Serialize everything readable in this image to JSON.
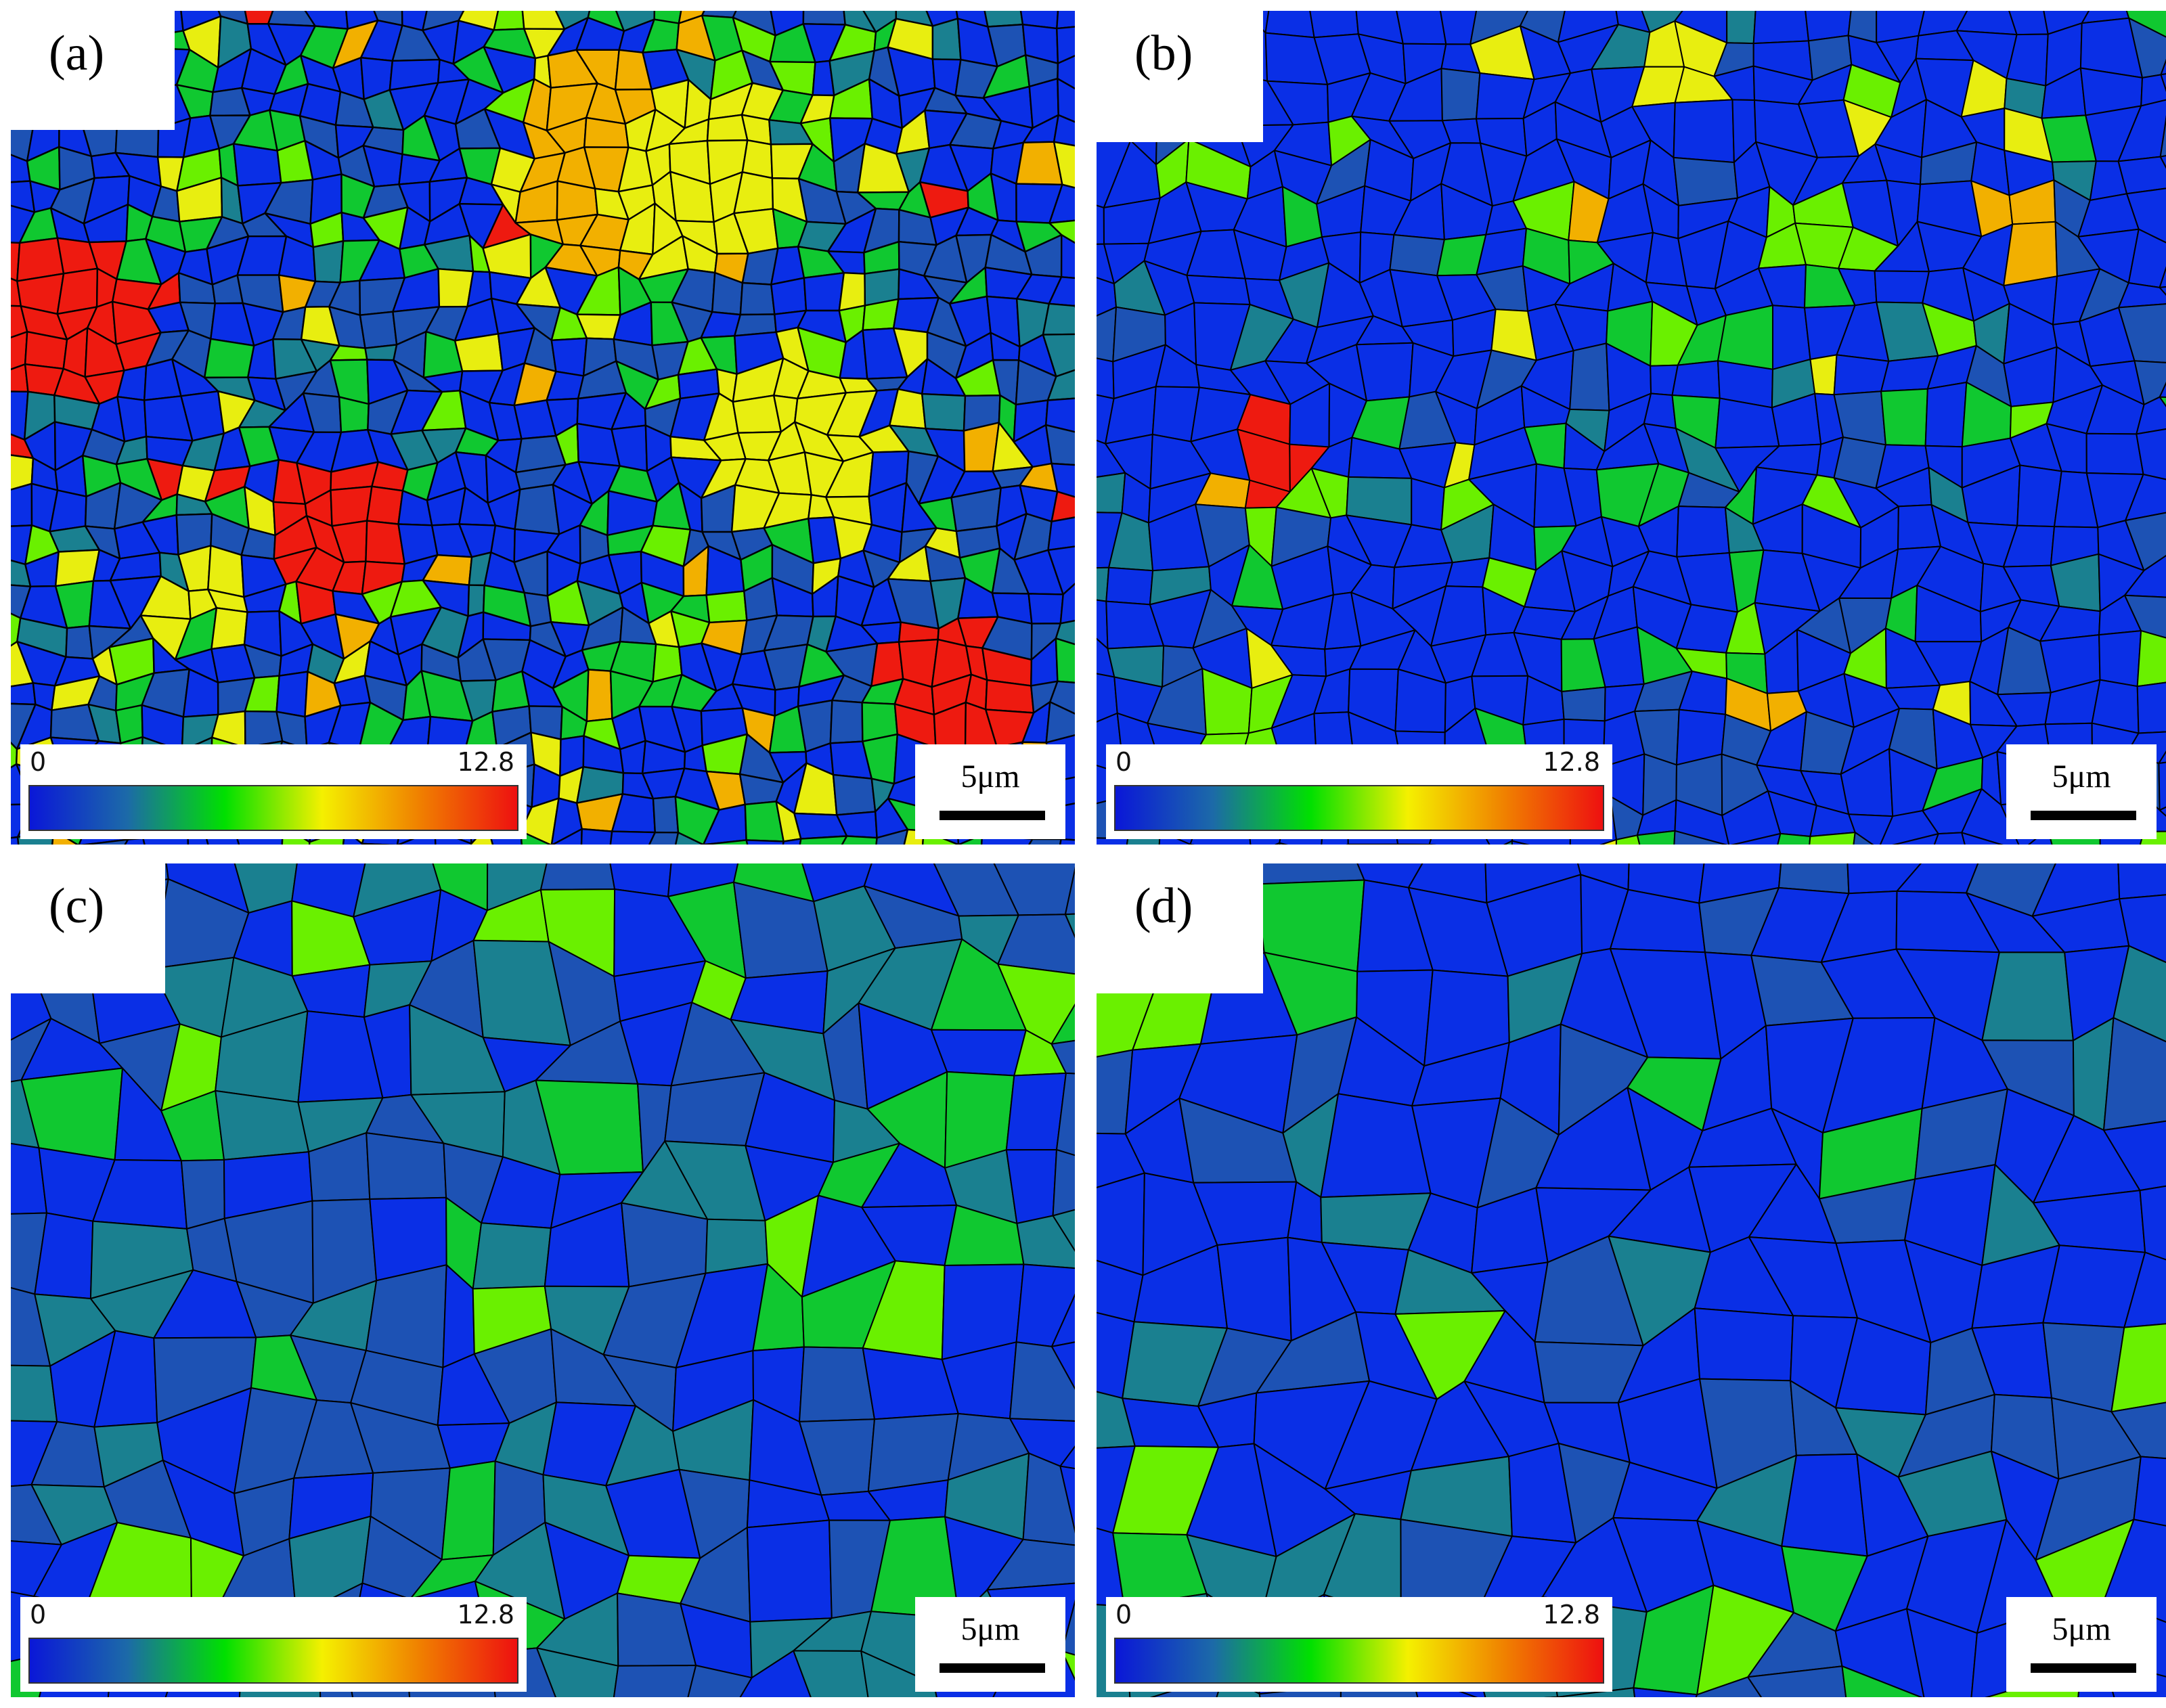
{
  "panels": [
    {
      "id": "a",
      "label": "(a)",
      "map": "a"
    },
    {
      "id": "b",
      "label": "(b)",
      "map": "b"
    },
    {
      "id": "c",
      "label": "(c)",
      "map": "c"
    },
    {
      "id": "d",
      "label": "(d)",
      "map": "d"
    }
  ],
  "legend": {
    "min_label": "0",
    "max_label": "12.8",
    "gradient_colors": [
      "#0a17d8",
      "#1c6aa8",
      "#00e000",
      "#f4f000",
      "#f08000",
      "#ee1010"
    ]
  },
  "scale_bar": {
    "label": "5μm"
  },
  "colors": {
    "grain_blue": "#0a2fe6",
    "grain_steel": "#1d52b4",
    "grain_teal": "#1a8090",
    "grain_green": "#10c830",
    "grain_lime": "#6af000",
    "grain_yellow": "#e8ee10",
    "grain_orange": "#f2b000",
    "grain_red": "#ee1a10",
    "boundary": "#000000"
  }
}
